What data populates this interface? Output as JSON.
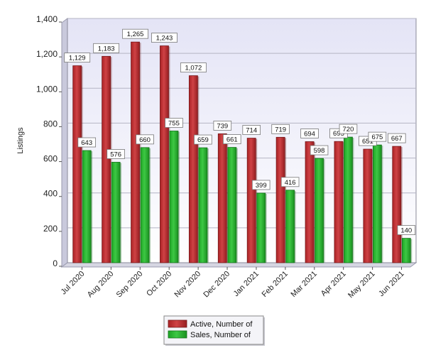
{
  "chart_data": {
    "type": "bar",
    "ylabel": "Listings",
    "ylim": [
      0,
      1400
    ],
    "yticks": [
      0,
      200,
      400,
      600,
      800,
      1000,
      1200,
      1400
    ],
    "ytick_labels": [
      "0",
      "200",
      "400",
      "600",
      "800",
      "1,000",
      "1,200",
      "1,400"
    ],
    "grid": true,
    "legend_position": "bottom-center",
    "categories": [
      "Jul 2020",
      "Aug 2020",
      "Sep 2020",
      "Oct 2020",
      "Nov 2020",
      "Dec 2020",
      "Jan 2021",
      "Feb 2021",
      "Mar 2021",
      "Apr 2021",
      "May 2021",
      "Jun 2021"
    ],
    "series": [
      {
        "name": "Active, Number of",
        "color": "#c8282c",
        "values": [
          1129,
          1183,
          1265,
          1243,
          1072,
          739,
          714,
          719,
          694,
          695,
          651,
          667
        ],
        "labels": [
          "1,129",
          "1,183",
          "1,265",
          "1,243",
          "1,072",
          "739",
          "714",
          "719",
          "694",
          "695",
          "651",
          "667"
        ]
      },
      {
        "name": "Sales, Number of",
        "color": "#22c02a",
        "values": [
          643,
          576,
          660,
          755,
          659,
          661,
          399,
          416,
          598,
          720,
          675,
          140
        ],
        "labels": [
          "643",
          "576",
          "660",
          "755",
          "659",
          "661",
          "399",
          "416",
          "598",
          "720",
          "675",
          "140"
        ]
      }
    ]
  }
}
